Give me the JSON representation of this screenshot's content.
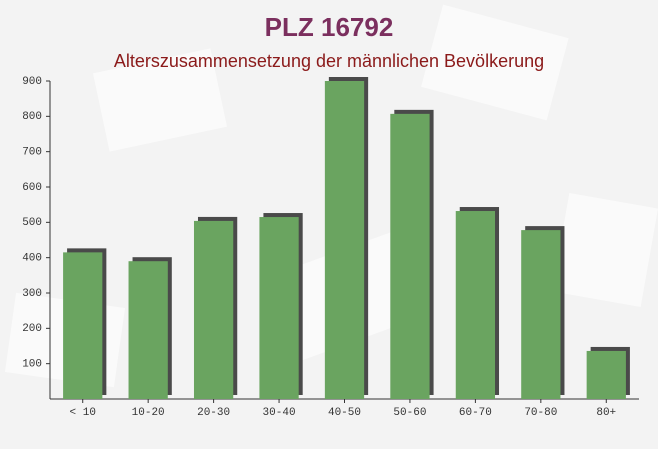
{
  "chart_data": {
    "type": "bar",
    "title": "PLZ 16792",
    "subtitle": "Alterszusammensetzung der männlichen Bevölkerung",
    "categories": [
      "< 10",
      "10-20",
      "20-30",
      "30-40",
      "40-50",
      "50-60",
      "60-70",
      "70-80",
      "80+"
    ],
    "values": [
      415,
      390,
      504,
      515,
      900,
      807,
      532,
      478,
      136
    ],
    "color": "#6aa460",
    "ylim": [
      0,
      900
    ],
    "yticks": [
      100,
      200,
      300,
      400,
      500,
      600,
      700,
      800,
      900
    ],
    "grid": false
  }
}
